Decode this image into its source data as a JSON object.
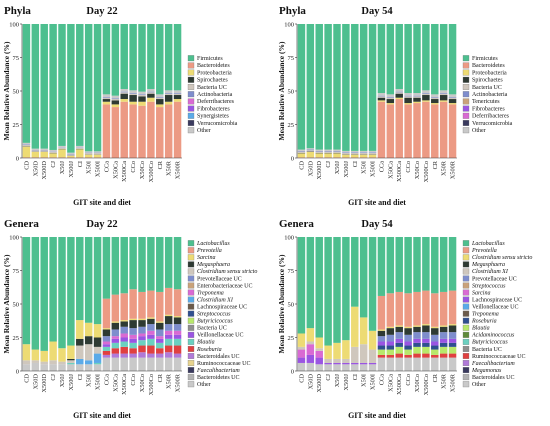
{
  "x_categories": [
    "CD",
    "X50D",
    "X500D",
    "CJ",
    "X50J",
    "X500J",
    "CI",
    "X50I",
    "X500I",
    "CCa",
    "X50Ca",
    "X500Ca",
    "CCo",
    "X50Co",
    "X500Co",
    "CR",
    "X50R",
    "X500R"
  ],
  "xlabel": "GIT site and diet",
  "ylabel": "Mean Relative Abundance (%)",
  "yticks": [
    0,
    25,
    50,
    75,
    100
  ],
  "chart_data": [
    {
      "type": "bar",
      "stacked": true,
      "panel_label": "Phyla",
      "title": "Day 22",
      "xlabel": "GIT site and diet",
      "ylabel": "Mean Relative Abundance (%)",
      "ylim": [
        0,
        100
      ],
      "legend": [
        "Firmicutes",
        "Bacteroidetes",
        "Proteobacteria",
        "Spirochaetes",
        "Bacteria UC",
        "Actinobacteria",
        "Deferribacteres",
        "Fibrobacteres",
        "Synergistetes",
        "Verrucomicrobia",
        "Other"
      ],
      "legend_italic": [],
      "colors": {
        "Firmicutes": "#4dbf8f",
        "Bacteroidetes": "#ec9a84",
        "Proteobacteria": "#eddb74",
        "Spirochaetes": "#2e3a33",
        "Bacteria UC": "#cfc7bd",
        "Actinobacteria": "#7e8dcd",
        "Deferribacteres": "#d96ad3",
        "Fibrobacteres": "#9a55e2",
        "Synergistetes": "#5aaae8",
        "Verrucomicrobia": "#3a3a5e",
        "Other": "#c9c9c9"
      },
      "series": [
        {
          "name": "Bacteroidetes",
          "values": [
            0.5,
            0.5,
            0.5,
            0.5,
            0.5,
            0.5,
            0.5,
            0.5,
            0.5,
            40,
            38,
            42,
            40,
            39,
            42,
            38,
            40,
            42
          ]
        },
        {
          "name": "Proteobacteria",
          "values": [
            8,
            4,
            4,
            3,
            6,
            1,
            6,
            2,
            2,
            2,
            2,
            2,
            2,
            3,
            3,
            2,
            2,
            2
          ]
        },
        {
          "name": "Spirochaetes",
          "values": [
            0.3,
            0.2,
            0.2,
            0.2,
            0.2,
            0.2,
            0.2,
            0.2,
            0.2,
            2,
            3,
            4,
            5,
            4,
            3,
            4,
            5,
            3
          ]
        },
        {
          "name": "Bacteria UC",
          "values": [
            1,
            1,
            1,
            1,
            1,
            1,
            1,
            1,
            1,
            1,
            1,
            1,
            1,
            1,
            1,
            1,
            1,
            1
          ]
        },
        {
          "name": "Actinobacteria",
          "values": [
            0.5,
            0.3,
            0.3,
            0.3,
            0.3,
            0.3,
            0.3,
            0.3,
            0.3,
            0.5,
            0.5,
            0.5,
            0.5,
            0.5,
            0.5,
            0.5,
            0.5,
            0.5
          ]
        },
        {
          "name": "Other",
          "values": [
            1,
            1,
            1,
            1,
            1,
            1,
            1,
            1,
            1,
            2,
            2,
            2,
            2,
            2,
            2,
            2,
            2,
            2
          ]
        }
      ]
    },
    {
      "type": "bar",
      "stacked": true,
      "panel_label": "Phyla",
      "title": "Day 54",
      "xlabel": "GIT site and diet",
      "ylabel": "Mean Relative Abundance (%)",
      "ylim": [
        0,
        100
      ],
      "legend": [
        "Firmicutes",
        "Bacteroidetes",
        "Proteobacteria",
        "Spirochaetes",
        "Bacteria UC",
        "Actinobacteria",
        "Tenericutes",
        "Fibrobacteres",
        "Deferribacteres",
        "Verrucomicrobia",
        "Other"
      ],
      "legend_italic": [],
      "colors": {
        "Firmicutes": "#4dbf8f",
        "Bacteroidetes": "#ec9a84",
        "Proteobacteria": "#eddb74",
        "Spirochaetes": "#2e3a33",
        "Bacteria UC": "#cfc7bd",
        "Actinobacteria": "#7e8dcd",
        "Tenericutes": "#c9a27a",
        "Fibrobacteres": "#9a55e2",
        "Deferribacteres": "#d96ad3",
        "Verrucomicrobia": "#3a3a5e",
        "Other": "#c9c9c9"
      },
      "series": [
        {
          "name": "Bacteroidetes",
          "values": [
            0.5,
            0.5,
            0.5,
            0.5,
            0.5,
            0.5,
            0.5,
            0.5,
            0.5,
            42,
            40,
            44,
            40,
            41,
            42,
            40,
            42,
            40
          ]
        },
        {
          "name": "Proteobacteria",
          "values": [
            3,
            4,
            3,
            3,
            3,
            2,
            2,
            2,
            2,
            1,
            1,
            1,
            1,
            1,
            1,
            1,
            1,
            1
          ]
        },
        {
          "name": "Spirochaetes",
          "values": [
            0.3,
            0.3,
            0.3,
            0.3,
            0.3,
            0.3,
            0.3,
            0.3,
            0.3,
            2,
            3,
            3,
            4,
            3,
            4,
            3,
            4,
            3
          ]
        },
        {
          "name": "Bacteria UC",
          "values": [
            1,
            1,
            1,
            1,
            1,
            1,
            1,
            1,
            1,
            1,
            1,
            1,
            1,
            1,
            1,
            1,
            1,
            1
          ]
        },
        {
          "name": "Actinobacteria",
          "values": [
            0.5,
            0.5,
            0.5,
            0.5,
            0.5,
            0.5,
            0.5,
            0.5,
            0.5,
            0.5,
            0.5,
            0.5,
            0.5,
            0.5,
            0.5,
            0.5,
            0.5,
            0.5
          ]
        },
        {
          "name": "Other",
          "values": [
            1,
            1,
            1,
            1,
            1,
            1,
            1,
            1,
            1,
            2,
            2,
            2,
            2,
            2,
            2,
            2,
            2,
            2
          ]
        }
      ]
    },
    {
      "type": "bar",
      "stacked": true,
      "panel_label": "Genera",
      "title": "Day 22",
      "xlabel": "GIT site and diet",
      "ylabel": "Mean Relative Abundance (%)",
      "ylim": [
        0,
        100
      ],
      "legend": [
        "Lactobacillus",
        "Prevotella",
        "Sarcina",
        "Megasphaera",
        "Clostridium sensu stricto",
        "Prevotellaceae UC",
        "Enterobacteriaceae UC",
        "Treponema",
        "Clostridium XI",
        "Lachnospiraceae UC",
        "Streptococcus",
        "Butyricicoccus",
        "Bacteria UC",
        "Veillonellaceae UC",
        "Blautia",
        "Roseburia",
        "Bacteroidales UC",
        "Ruminococcaceae UC",
        "Faecalibacterium",
        "Bacteroidetes UC",
        "Other"
      ],
      "legend_italic": [
        "Lactobacillus",
        "Prevotella",
        "Sarcina",
        "Megasphaera",
        "Clostridium sensu stricto",
        "Treponema",
        "Clostridium XI",
        "Streptococcus",
        "Butyricicoccus",
        "Blautia",
        "Roseburia",
        "Faecalibacterium"
      ],
      "colors": {
        "Lactobacillus": "#4dbf8f",
        "Prevotella": "#ec9a84",
        "Sarcina": "#eddb74",
        "Megasphaera": "#2e3a33",
        "Clostridium sensu stricto": "#cfc7bd",
        "Prevotellaceae UC": "#7e8dcd",
        "Enterobacteriaceae UC": "#c9a27a",
        "Treponema": "#d96ad3",
        "Clostridium XI": "#5aaae8",
        "Lachnospiraceae UC": "#6b5a4a",
        "Streptococcus": "#2f4f8f",
        "Butyricicoccus": "#b8e86b",
        "Bacteria UC": "#8e8e8e",
        "Veillonellaceae UC": "#9a55e2",
        "Blautia": "#6bd0c0",
        "Roseburia": "#e04040",
        "Bacteroidales UC": "#b07ad8",
        "Ruminococcaceae UC": "#e7d38e",
        "Faecalibacterium": "#3a3a5e",
        "Bacteroidetes UC": "#b3b3b3",
        "Other": "#c9c9c9"
      },
      "series": [
        {
          "name": "Other",
          "values": [
            5,
            6,
            5,
            5,
            5,
            5,
            5,
            5,
            5,
            10,
            10,
            10,
            10,
            10,
            10,
            10,
            10,
            10
          ]
        },
        {
          "name": "Bacteroidales UC",
          "values": [
            0,
            0,
            0,
            0,
            0,
            0,
            0,
            0,
            0,
            2,
            3,
            3,
            3,
            4,
            3,
            3,
            4,
            3
          ]
        },
        {
          "name": "Roseburia",
          "values": [
            0,
            0,
            0,
            0,
            0,
            0,
            0,
            0,
            0,
            3,
            4,
            5,
            4,
            5,
            6,
            4,
            5,
            6
          ]
        },
        {
          "name": "Blautia",
          "values": [
            0,
            0,
            0,
            0,
            0,
            1,
            0,
            0,
            1,
            3,
            4,
            4,
            4,
            4,
            5,
            4,
            5,
            5
          ]
        },
        {
          "name": "Veillonellaceae UC",
          "values": [
            0,
            0,
            0,
            0,
            0,
            0,
            0,
            0,
            0,
            2,
            3,
            3,
            3,
            3,
            3,
            3,
            3,
            3
          ]
        },
        {
          "name": "Clostridium XI",
          "values": [
            0,
            0,
            0,
            0,
            0,
            0,
            4,
            3,
            7,
            0,
            0,
            0,
            0,
            0,
            0,
            0,
            0,
            0
          ]
        },
        {
          "name": "Treponema",
          "values": [
            0,
            0,
            0,
            0,
            0,
            0,
            0,
            0,
            0,
            2,
            2,
            3,
            3,
            2,
            3,
            2,
            3,
            3
          ]
        },
        {
          "name": "Prevotellaceae UC",
          "values": [
            0,
            0,
            0,
            0,
            0,
            0,
            0,
            0,
            0,
            4,
            5,
            5,
            5,
            5,
            5,
            5,
            5,
            5
          ]
        },
        {
          "name": "Clostridium sensu stricto",
          "values": [
            3,
            2,
            2,
            3,
            2,
            2,
            10,
            12,
            5,
            0,
            0,
            0,
            0,
            0,
            0,
            0,
            0,
            0
          ]
        },
        {
          "name": "Megasphaera",
          "values": [
            0,
            0,
            0,
            0,
            0,
            1,
            5,
            6,
            7,
            5,
            5,
            4,
            6,
            5,
            4,
            5,
            6,
            5
          ]
        },
        {
          "name": "Sarcina",
          "values": [
            12,
            8,
            8,
            14,
            10,
            10,
            14,
            10,
            10,
            1,
            1,
            1,
            1,
            1,
            1,
            1,
            1,
            1
          ]
        },
        {
          "name": "Prevotella",
          "values": [
            0,
            0,
            0,
            0,
            0,
            0,
            0,
            0,
            0,
            22,
            20,
            20,
            22,
            20,
            20,
            22,
            20,
            20
          ]
        }
      ]
    },
    {
      "type": "bar",
      "stacked": true,
      "panel_label": "Genera",
      "title": "Day 54",
      "xlabel": "GIT site and diet",
      "ylabel": "Mean Relative Abundance (%)",
      "ylim": [
        0,
        100
      ],
      "legend": [
        "Lactobacillus",
        "Prevotella",
        "Clostridium sensu stricto",
        "Megasphaera",
        "Clostridium XI",
        "Prevotellaceae UC",
        "Streptococcus",
        "Sarcina",
        "Lachnospiraceae UC",
        "Veillonellaceae UC",
        "Treponema",
        "Roseburia",
        "Blautia",
        "Acidaminococcus",
        "Butyricicoccus",
        "Bacteria UC",
        "Ruminococcaceae UC",
        "Faecalibacterium",
        "Megamonas",
        "Bacteroidales UC",
        "Other"
      ],
      "legend_italic": [
        "Lactobacillus",
        "Prevotella",
        "Clostridium sensu stricto",
        "Megasphaera",
        "Clostridium XI",
        "Streptococcus",
        "Sarcina",
        "Treponema",
        "Roseburia",
        "Blautia",
        "Acidaminococcus",
        "Butyricicoccus",
        "Faecalibacterium",
        "Megamonas"
      ],
      "colors": {
        "Lactobacillus": "#4dbf8f",
        "Prevotella": "#ec9a84",
        "Clostridium sensu stricto": "#eddb74",
        "Megasphaera": "#2e3a33",
        "Clostridium XI": "#cfc7bd",
        "Prevotellaceae UC": "#7e8dcd",
        "Streptococcus": "#c9a27a",
        "Sarcina": "#d96ad3",
        "Lachnospiraceae UC": "#9a55e2",
        "Veillonellaceae UC": "#5aaae8",
        "Treponema": "#6b5a4a",
        "Roseburia": "#2f4f8f",
        "Blautia": "#b8e86b",
        "Acidaminococcus": "#5e8a3a",
        "Butyricicoccus": "#6bd0c0",
        "Bacteria UC": "#8e8e8e",
        "Ruminococcaceae UC": "#e04040",
        "Faecalibacterium": "#b07ad8",
        "Megamonas": "#3a3a5e",
        "Bacteroidales UC": "#b3b3b3",
        "Other": "#c9c9c9"
      },
      "series": [
        {
          "name": "Other",
          "values": [
            6,
            6,
            5,
            5,
            5,
            5,
            5,
            5,
            5,
            10,
            10,
            10,
            10,
            10,
            10,
            10,
            10,
            10
          ]
        },
        {
          "name": "Ruminococcaceae UC",
          "values": [
            0,
            0,
            0,
            0,
            0,
            0,
            0,
            0,
            0,
            2,
            2,
            3,
            2,
            3,
            3,
            2,
            3,
            3
          ]
        },
        {
          "name": "Blautia",
          "values": [
            0,
            0,
            0,
            0,
            0,
            0,
            0,
            0,
            0,
            4,
            4,
            5,
            4,
            5,
            5,
            4,
            5,
            5
          ]
        },
        {
          "name": "Roseburia",
          "values": [
            0,
            0,
            0,
            0,
            0,
            0,
            0,
            0,
            0,
            3,
            3,
            3,
            3,
            3,
            3,
            3,
            3,
            3
          ]
        },
        {
          "name": "Lachnospiraceae UC",
          "values": [
            4,
            6,
            5,
            1,
            1,
            1,
            1,
            1,
            1,
            3,
            3,
            3,
            3,
            3,
            3,
            3,
            3,
            3
          ]
        },
        {
          "name": "Sarcina",
          "values": [
            6,
            8,
            5,
            0,
            0,
            0,
            0,
            0,
            0,
            0,
            0,
            0,
            0,
            0,
            0,
            0,
            0,
            0
          ]
        },
        {
          "name": "Prevotellaceae UC",
          "values": [
            0,
            0,
            0,
            0,
            0,
            0,
            0,
            0,
            0,
            4,
            5,
            5,
            5,
            5,
            5,
            5,
            5,
            5
          ]
        },
        {
          "name": "Clostridium XI",
          "values": [
            2,
            2,
            2,
            3,
            3,
            3,
            12,
            14,
            10,
            0,
            0,
            0,
            0,
            0,
            0,
            0,
            0,
            0
          ]
        },
        {
          "name": "Megasphaera",
          "values": [
            0,
            0,
            0,
            0,
            0,
            0,
            0,
            0,
            0,
            4,
            5,
            4,
            5,
            4,
            5,
            5,
            4,
            5
          ]
        },
        {
          "name": "Clostridium sensu stricto",
          "values": [
            10,
            10,
            8,
            10,
            12,
            14,
            30,
            20,
            14,
            1,
            1,
            1,
            1,
            1,
            1,
            1,
            1,
            1
          ]
        },
        {
          "name": "Prevotella",
          "values": [
            0,
            0,
            0,
            0,
            0,
            0,
            0,
            0,
            0,
            25,
            25,
            25,
            25,
            25,
            25,
            25,
            25,
            25
          ]
        }
      ]
    }
  ]
}
